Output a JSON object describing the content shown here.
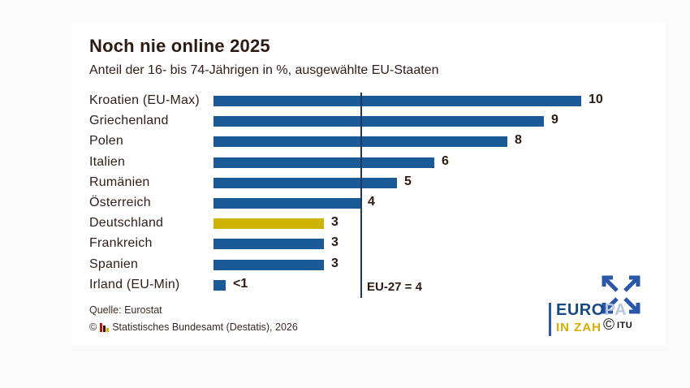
{
  "chart_data": {
    "type": "bar",
    "orientation": "horizontal",
    "title": "Noch nie online 2025",
    "subtitle": "Anteil der 16- bis 74-Jährigen in %, ausgewählte EU-Staaten",
    "categories": [
      "Kroatien (EU-Max)",
      "Griechenland",
      "Polen",
      "Italien",
      "Rumänien",
      "Österreich",
      "Deutschland",
      "Frankreich",
      "Spanien",
      "Irland (EU-Min)"
    ],
    "values": [
      10,
      9,
      8,
      6,
      5,
      4,
      3,
      3,
      3,
      0.3
    ],
    "value_labels": [
      "10",
      "9",
      "8",
      "6",
      "5",
      "4",
      "3",
      "3",
      "3",
      "<1"
    ],
    "highlight_category": "Deutschland",
    "bar_color": "#1a5a96",
    "highlight_color": "#cfb408",
    "xlim": [
      0,
      10.5
    ],
    "grid": false,
    "legend": false,
    "reference_line": {
      "value": 4,
      "label": "EU-27 = 4",
      "color": "#1c3a5c"
    }
  },
  "footer": {
    "source": "Quelle: Eurostat",
    "copyright_symbol": "©",
    "copyright": "Statistisches Bundesamt (Destatis), 2026"
  },
  "branding": {
    "logo_line1_strong": "EURO",
    "logo_line1_light": "PA",
    "logo_line2": "IN ZAHLEN",
    "watermark_symbol": "©",
    "watermark_text": "ITU",
    "euro_blue": "#174a85",
    "pa_light_blue": "#b8c6dc",
    "zahlen_gold": "#d6ae00",
    "arrow_blue": "#2b57a8"
  }
}
